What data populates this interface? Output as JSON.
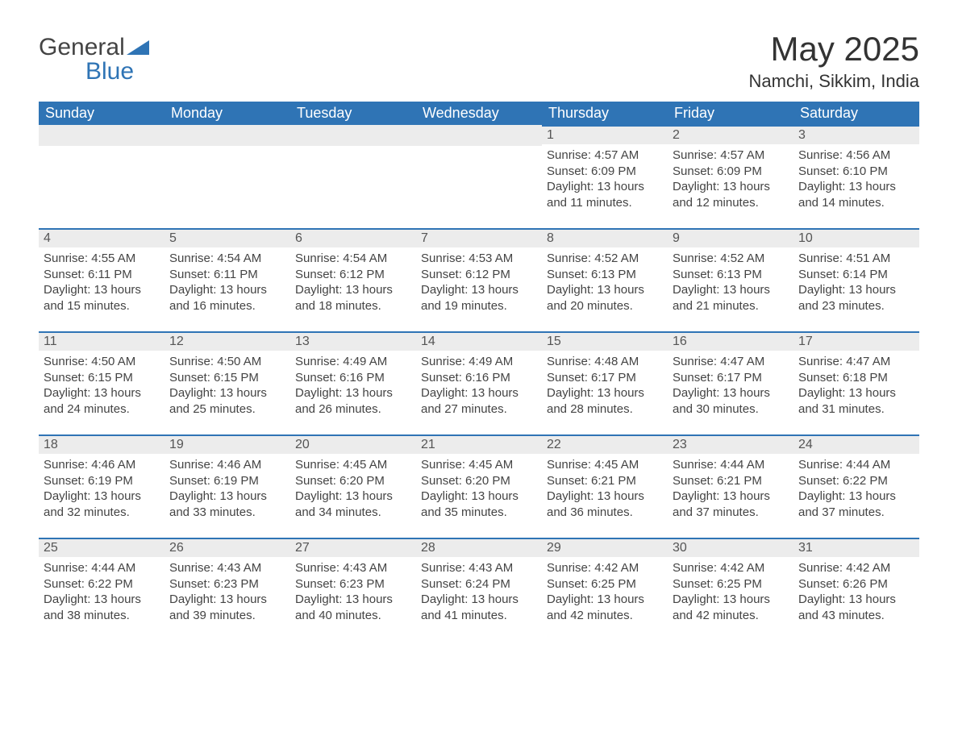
{
  "brand": {
    "word1": "General",
    "word2": "Blue",
    "tri_color": "#2f74b5"
  },
  "title": "May 2025",
  "location": "Namchi, Sikkim, India",
  "colors": {
    "header_bg": "#2f74b5",
    "header_text": "#ffffff",
    "daynum_bg": "#ececec",
    "daynum_border": "#2f74b5",
    "body_text": "#444444"
  },
  "weekdays": [
    "Sunday",
    "Monday",
    "Tuesday",
    "Wednesday",
    "Thursday",
    "Friday",
    "Saturday"
  ],
  "weeks": [
    [
      null,
      null,
      null,
      null,
      {
        "n": "1",
        "sunrise": "4:57 AM",
        "sunset": "6:09 PM",
        "daylight": "13 hours and 11 minutes."
      },
      {
        "n": "2",
        "sunrise": "4:57 AM",
        "sunset": "6:09 PM",
        "daylight": "13 hours and 12 minutes."
      },
      {
        "n": "3",
        "sunrise": "4:56 AM",
        "sunset": "6:10 PM",
        "daylight": "13 hours and 14 minutes."
      }
    ],
    [
      {
        "n": "4",
        "sunrise": "4:55 AM",
        "sunset": "6:11 PM",
        "daylight": "13 hours and 15 minutes."
      },
      {
        "n": "5",
        "sunrise": "4:54 AM",
        "sunset": "6:11 PM",
        "daylight": "13 hours and 16 minutes."
      },
      {
        "n": "6",
        "sunrise": "4:54 AM",
        "sunset": "6:12 PM",
        "daylight": "13 hours and 18 minutes."
      },
      {
        "n": "7",
        "sunrise": "4:53 AM",
        "sunset": "6:12 PM",
        "daylight": "13 hours and 19 minutes."
      },
      {
        "n": "8",
        "sunrise": "4:52 AM",
        "sunset": "6:13 PM",
        "daylight": "13 hours and 20 minutes."
      },
      {
        "n": "9",
        "sunrise": "4:52 AM",
        "sunset": "6:13 PM",
        "daylight": "13 hours and 21 minutes."
      },
      {
        "n": "10",
        "sunrise": "4:51 AM",
        "sunset": "6:14 PM",
        "daylight": "13 hours and 23 minutes."
      }
    ],
    [
      {
        "n": "11",
        "sunrise": "4:50 AM",
        "sunset": "6:15 PM",
        "daylight": "13 hours and 24 minutes."
      },
      {
        "n": "12",
        "sunrise": "4:50 AM",
        "sunset": "6:15 PM",
        "daylight": "13 hours and 25 minutes."
      },
      {
        "n": "13",
        "sunrise": "4:49 AM",
        "sunset": "6:16 PM",
        "daylight": "13 hours and 26 minutes."
      },
      {
        "n": "14",
        "sunrise": "4:49 AM",
        "sunset": "6:16 PM",
        "daylight": "13 hours and 27 minutes."
      },
      {
        "n": "15",
        "sunrise": "4:48 AM",
        "sunset": "6:17 PM",
        "daylight": "13 hours and 28 minutes."
      },
      {
        "n": "16",
        "sunrise": "4:47 AM",
        "sunset": "6:17 PM",
        "daylight": "13 hours and 30 minutes."
      },
      {
        "n": "17",
        "sunrise": "4:47 AM",
        "sunset": "6:18 PM",
        "daylight": "13 hours and 31 minutes."
      }
    ],
    [
      {
        "n": "18",
        "sunrise": "4:46 AM",
        "sunset": "6:19 PM",
        "daylight": "13 hours and 32 minutes."
      },
      {
        "n": "19",
        "sunrise": "4:46 AM",
        "sunset": "6:19 PM",
        "daylight": "13 hours and 33 minutes."
      },
      {
        "n": "20",
        "sunrise": "4:45 AM",
        "sunset": "6:20 PM",
        "daylight": "13 hours and 34 minutes."
      },
      {
        "n": "21",
        "sunrise": "4:45 AM",
        "sunset": "6:20 PM",
        "daylight": "13 hours and 35 minutes."
      },
      {
        "n": "22",
        "sunrise": "4:45 AM",
        "sunset": "6:21 PM",
        "daylight": "13 hours and 36 minutes."
      },
      {
        "n": "23",
        "sunrise": "4:44 AM",
        "sunset": "6:21 PM",
        "daylight": "13 hours and 37 minutes."
      },
      {
        "n": "24",
        "sunrise": "4:44 AM",
        "sunset": "6:22 PM",
        "daylight": "13 hours and 37 minutes."
      }
    ],
    [
      {
        "n": "25",
        "sunrise": "4:44 AM",
        "sunset": "6:22 PM",
        "daylight": "13 hours and 38 minutes."
      },
      {
        "n": "26",
        "sunrise": "4:43 AM",
        "sunset": "6:23 PM",
        "daylight": "13 hours and 39 minutes."
      },
      {
        "n": "27",
        "sunrise": "4:43 AM",
        "sunset": "6:23 PM",
        "daylight": "13 hours and 40 minutes."
      },
      {
        "n": "28",
        "sunrise": "4:43 AM",
        "sunset": "6:24 PM",
        "daylight": "13 hours and 41 minutes."
      },
      {
        "n": "29",
        "sunrise": "4:42 AM",
        "sunset": "6:25 PM",
        "daylight": "13 hours and 42 minutes."
      },
      {
        "n": "30",
        "sunrise": "4:42 AM",
        "sunset": "6:25 PM",
        "daylight": "13 hours and 42 minutes."
      },
      {
        "n": "31",
        "sunrise": "4:42 AM",
        "sunset": "6:26 PM",
        "daylight": "13 hours and 43 minutes."
      }
    ]
  ],
  "labels": {
    "sunrise": "Sunrise: ",
    "sunset": "Sunset: ",
    "daylight": "Daylight: "
  }
}
